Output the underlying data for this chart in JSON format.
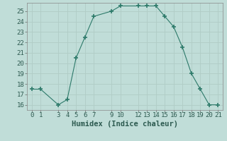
{
  "x": [
    0,
    1,
    3,
    4,
    5,
    6,
    7,
    9,
    10,
    12,
    13,
    14,
    15,
    16,
    17,
    18,
    19,
    20,
    21
  ],
  "y": [
    17.5,
    17.5,
    16.0,
    16.5,
    20.5,
    22.5,
    24.5,
    25.0,
    25.5,
    25.5,
    25.5,
    25.5,
    24.5,
    23.5,
    21.5,
    19.0,
    17.5,
    16.0,
    16.0
  ],
  "line_color": "#2d7a6a",
  "marker": "+",
  "marker_size": 5,
  "bg_color": "#c0ddd8",
  "grid_color": "#b8d4ce",
  "xlabel": "Humidex (Indice chaleur)",
  "xlim": [
    -0.5,
    21.5
  ],
  "ylim": [
    15.5,
    25.8
  ],
  "xticks": [
    0,
    1,
    3,
    4,
    5,
    6,
    7,
    9,
    10,
    12,
    13,
    14,
    15,
    16,
    17,
    18,
    19,
    20,
    21
  ],
  "yticks": [
    16,
    17,
    18,
    19,
    20,
    21,
    22,
    23,
    24,
    25
  ],
  "font_size": 6.5,
  "label_font_size": 7.5
}
